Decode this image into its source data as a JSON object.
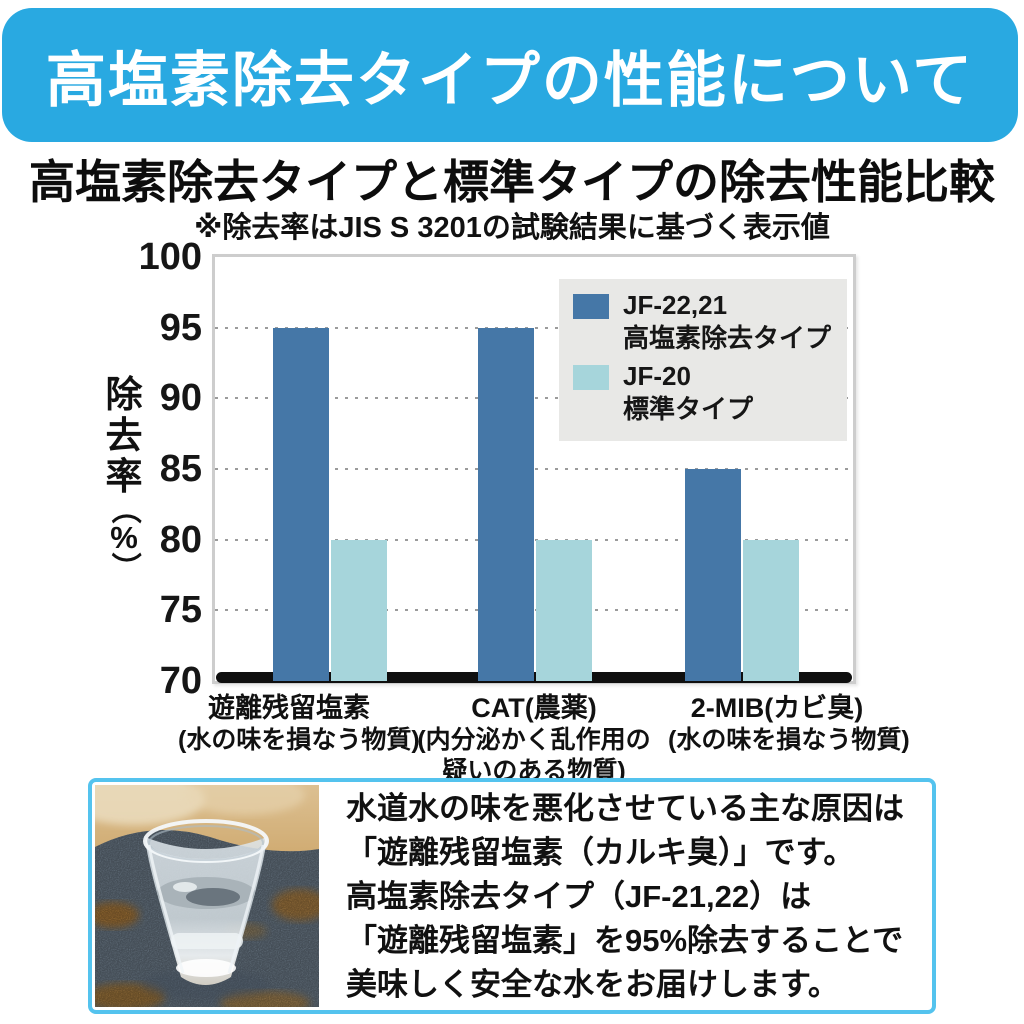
{
  "header": {
    "title": "高塩素除去タイプの性能について",
    "bg_color": "#29a9e1",
    "text_color": "#ffffff"
  },
  "section": {
    "title": "高塩素除去タイプと標準タイプの除去性能比較",
    "note": "※除去率はJIS S 3201の試験結果に基づく表示値"
  },
  "chart_data": {
    "type": "bar",
    "title": "高塩素除去タイプと標準タイプの除去性能比較",
    "ylabel": "除去率（%）",
    "ylim": [
      70,
      100
    ],
    "yticks": [
      100,
      95,
      90,
      85,
      80,
      75,
      70
    ],
    "gridlines": [
      95,
      90,
      85,
      80,
      75
    ],
    "grid_style": "dotted",
    "legend_position": "top-right",
    "legend_bg": "#e8e8e6",
    "categories": [
      {
        "label": "遊離残留塩素",
        "sublabel": [
          "(水の味を損なう物質)"
        ]
      },
      {
        "label": "CAT(農薬)",
        "sublabel": [
          "(内分泌かく乱作用の",
          "疑いのある物質)"
        ]
      },
      {
        "label": "2-MIB(カビ臭)",
        "sublabel": [
          "(水の味を損なう物質)"
        ]
      }
    ],
    "series": [
      {
        "name": "JF-22,21",
        "subtitle": "高塩素除去タイプ",
        "color": "#4577a7",
        "values": [
          95,
          95,
          85
        ]
      },
      {
        "name": "JF-20",
        "subtitle": "標準タイプ",
        "color": "#a6d5db",
        "values": [
          80,
          80,
          80
        ]
      }
    ]
  },
  "footer": {
    "border_color": "#54c3ee",
    "photo": "glass-of-water-on-cloth",
    "lines": [
      "水道水の味を悪化させている主な原因は",
      "「遊離残留塩素（カルキ臭）」です。",
      "高塩素除去タイプ（JF-21,22）は",
      "「遊離残留塩素」を95%除去することで",
      "美味しく安全な水をお届けします。"
    ]
  }
}
